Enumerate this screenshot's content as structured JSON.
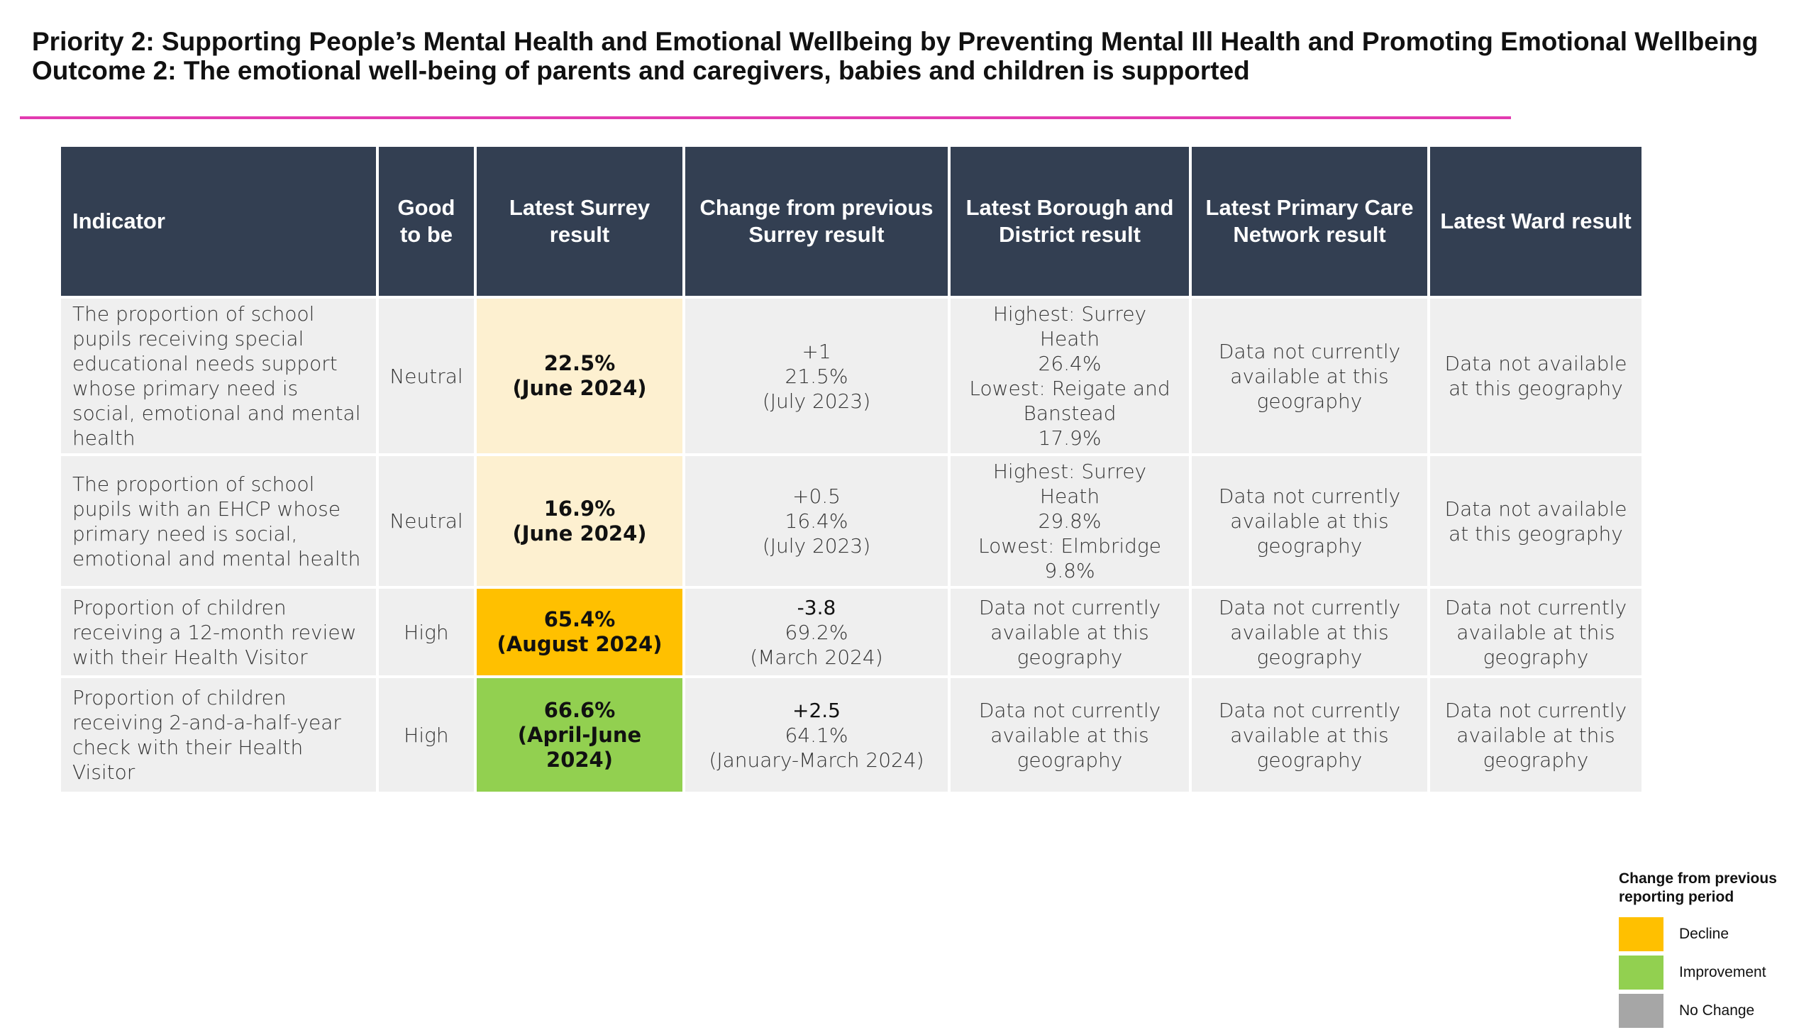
{
  "header": {
    "priority": "Priority 2: Supporting People’s Mental Health and Emotional Wellbeing by Preventing Mental Ill Health and Promoting Emotional Wellbeing",
    "outcome": "Outcome 2: The emotional well-being of parents and caregivers, babies and children is supported"
  },
  "table": {
    "columns": [
      "Indicator",
      "Good to be",
      "Latest Surrey result",
      "Change from previous Surrey result",
      "Latest Borough and District result",
      "Latest Primary Care Network result",
      "Latest Ward result"
    ],
    "rows": [
      {
        "indicator": "The proportion of school pupils receiving special educational needs support whose primary need is social, emotional and mental health",
        "good_to_be": "Neutral",
        "surrey_value": "22.5%",
        "surrey_period": "(June 2024)",
        "surrey_status": "no-change",
        "change": "+1",
        "prev_value": "21.5%",
        "prev_period": "(July 2023)",
        "borough": [
          "Highest: Surrey Heath",
          "26.4%",
          "Lowest: Reigate and Banstead",
          "17.9%"
        ],
        "pcn": "Data not currently available at this geography",
        "ward": "Data not available at this geography"
      },
      {
        "indicator": "The proportion of school pupils with an EHCP whose primary need is social, emotional and mental health",
        "good_to_be": "Neutral",
        "surrey_value": "16.9%",
        "surrey_period": "(June 2024)",
        "surrey_status": "no-change",
        "change": "+0.5",
        "prev_value": "16.4%",
        "prev_period": "(July 2023)",
        "borough": [
          "Highest: Surrey Heath",
          "29.8%",
          "Lowest: Elmbridge",
          "9.8%"
        ],
        "pcn": "Data not currently available at this geography",
        "ward": "Data not available at this geography"
      },
      {
        "indicator": "Proportion of children receiving a 12-month review with their Health Visitor",
        "good_to_be": "High",
        "surrey_value": "65.4%",
        "surrey_period": "(August 2024)",
        "surrey_status": "decline",
        "change": "-3.8",
        "prev_value": "69.2%",
        "prev_period": "(March 2024)",
        "borough": [
          "Data not currently available at this geography"
        ],
        "pcn": "Data not currently available at this geography",
        "ward": "Data not currently available at this geography"
      },
      {
        "indicator": "Proportion of children receiving 2-and-a-half-year check with their Health Visitor",
        "good_to_be": "High",
        "surrey_value": "66.6%",
        "surrey_period": "(April-June 2024)",
        "surrey_status": "improvement",
        "change": "+2.5",
        "prev_value": "64.1%",
        "prev_period": "(January-March 2024)",
        "borough": [
          "Data not currently available at this geography"
        ],
        "pcn": "Data not currently available at this geography",
        "ward": "Data not currently available at this geography"
      }
    ]
  },
  "legend": {
    "title": "Change from previous reporting period",
    "items": [
      {
        "label": "Decline",
        "color": "#ffc000"
      },
      {
        "label": "Improvement",
        "color": "#92d050"
      },
      {
        "label": "No Change",
        "color": "#a6a6a6"
      }
    ]
  },
  "colors": {
    "header_bg": "#333f52",
    "divider": "#e23ab0",
    "cell_bg": "#efefef",
    "no_change_fill": "#fdf0d0",
    "decline_fill": "#ffc000",
    "improvement_fill": "#92d050"
  }
}
